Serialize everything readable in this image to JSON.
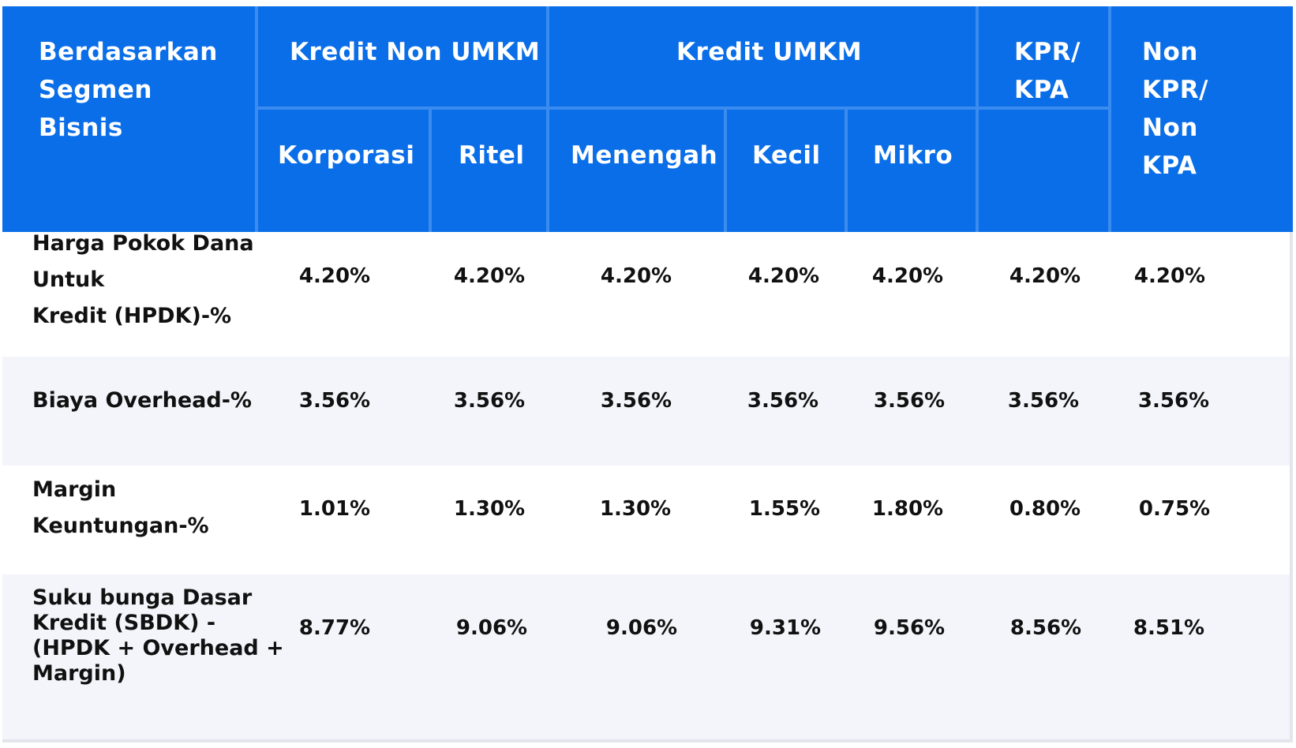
{
  "header": {
    "segment": [
      "Berdasarkan",
      "Segmen",
      "Bisnis"
    ],
    "non_umkm": "Kredit Non UMKM",
    "umkm": "Kredit UMKM",
    "kpr": [
      "KPR/",
      "KPA"
    ],
    "non_kpr": [
      "Non",
      "KPR/",
      "Non",
      "KPA"
    ],
    "korporasi": "Korporasi",
    "ritel": "Ritel",
    "menengah": "Menengah",
    "kecil": "Kecil",
    "mikro": "Mikro"
  },
  "rows": [
    {
      "label": [
        "Harga Pokok Dana",
        "Untuk",
        "Kredit (HPDK)-%"
      ],
      "values": [
        "4.20%",
        "4.20%",
        "4.20%",
        "4.20%",
        "4.20%",
        "4.20%",
        "4.20%"
      ]
    },
    {
      "label": [
        "Biaya Overhead-%"
      ],
      "values": [
        "3.56%",
        "3.56%",
        "3.56%",
        "3.56%",
        "3.56%",
        "3.56%",
        "3.56%"
      ]
    },
    {
      "label": [
        "Margin",
        "Keuntungan-%"
      ],
      "values": [
        "1.01%",
        "1.30%",
        "1.30%",
        "1.55%",
        "1.80%",
        "0.80%",
        "0.75%"
      ]
    },
    {
      "label": [
        "Suku bunga Dasar",
        "Kredit (SBDK) -",
        "(HPDK + Overhead +",
        "Margin)"
      ],
      "values": [
        "8.77%",
        "9.06%",
        "9.06%",
        "9.31%",
        "9.56%",
        "8.56%",
        "8.51%"
      ]
    }
  ],
  "colors": {
    "header_bg": "#0a6ee8",
    "header_divider": "#3c8cf0",
    "alt_row_bg": "#f4f5fa",
    "text": "#111111"
  }
}
